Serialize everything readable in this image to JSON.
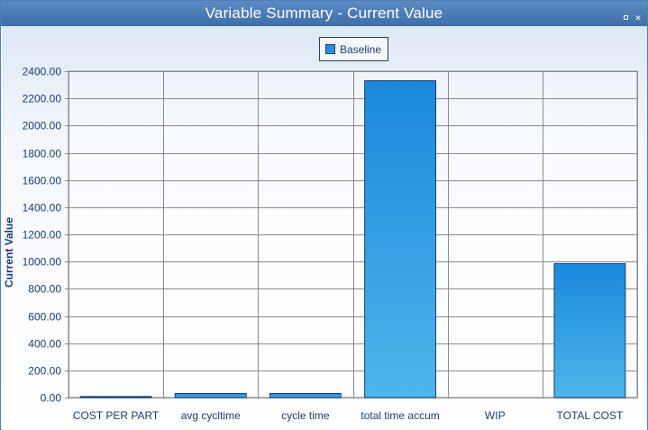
{
  "window": {
    "title": "Variable Summary - Current Value",
    "icons": [
      "restore-icon",
      "close-icon"
    ]
  },
  "legend": {
    "series_name": "Baseline",
    "color": "#2b8fdc"
  },
  "chart_data": {
    "type": "bar",
    "ylabel": "Current Value",
    "xlabel": "",
    "ylim": [
      0,
      2400
    ],
    "yticks": [
      "0.00",
      "200.00",
      "400.00",
      "600.00",
      "800.00",
      "1000.00",
      "1200.00",
      "1400.00",
      "1600.00",
      "1800.00",
      "2000.00",
      "2200.00",
      "2400.00"
    ],
    "grid": true,
    "legend_position": "top-center",
    "categories": [
      "COST PER PART",
      "avg cycltime",
      "cycle time",
      "total time accum",
      "WIP",
      "TOTAL COST"
    ],
    "series": [
      {
        "name": "Baseline",
        "values": [
          8,
          30,
          30,
          2330,
          0,
          985
        ]
      }
    ],
    "colors": {
      "bar_top": "#1a88dc",
      "bar_bottom": "#4db6ea",
      "bar_border": "#1a3d6e",
      "grid": "#8a8a8a",
      "text": "#1a3d6e"
    }
  }
}
